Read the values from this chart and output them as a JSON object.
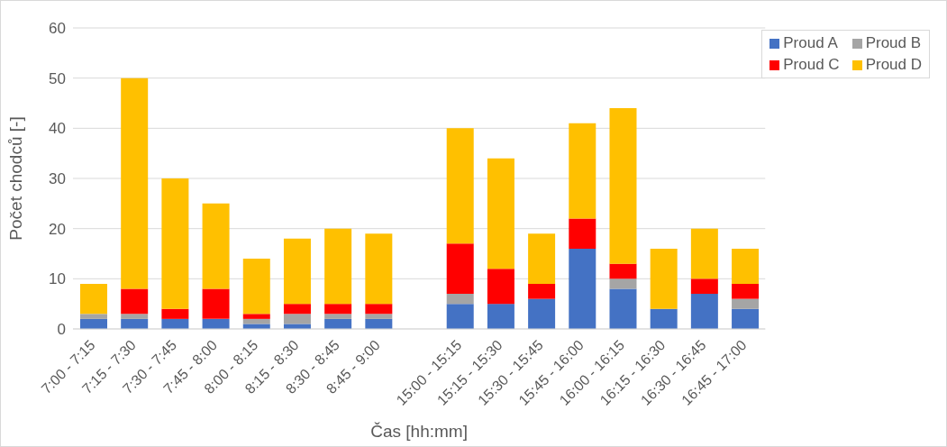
{
  "chart_data": {
    "type": "bar",
    "stacked": true,
    "xlabel": "Čas [hh:mm]",
    "ylabel": "Počet chodců [-]",
    "categories": [
      "7:00 - 7:15",
      "7:15 - 7:30",
      "7:30 - 7:45",
      "7:45 - 8:00",
      "8:00 - 8:15",
      "8:15 - 8:30",
      "8:30 - 8:45",
      "8:45 - 9:00",
      null,
      "15:00 - 15:15",
      "15:15 - 15:30",
      "15:30 - 15:45",
      "15:45 - 16:00",
      "16:00 - 16:15",
      "16:15 - 16:30",
      "16:30 - 16:45",
      "16:45 - 17:00"
    ],
    "series": [
      {
        "name": "Proud A",
        "color": "#4472c4",
        "values": [
          2,
          2,
          2,
          2,
          1,
          1,
          2,
          2,
          null,
          5,
          5,
          6,
          16,
          8,
          4,
          7,
          4
        ]
      },
      {
        "name": "Proud B",
        "color": "#a5a5a5",
        "values": [
          1,
          1,
          0,
          0,
          1,
          2,
          1,
          1,
          null,
          2,
          0,
          0,
          0,
          2,
          0,
          0,
          2
        ]
      },
      {
        "name": "Proud C",
        "color": "#ff0000",
        "values": [
          0,
          5,
          2,
          6,
          1,
          2,
          2,
          2,
          null,
          10,
          7,
          3,
          6,
          3,
          0,
          3,
          3
        ]
      },
      {
        "name": "Proud D",
        "color": "#ffc000",
        "values": [
          6,
          42,
          26,
          17,
          11,
          13,
          15,
          14,
          null,
          23,
          22,
          10,
          19,
          31,
          12,
          10,
          7
        ]
      }
    ],
    "ylim": [
      0,
      60
    ],
    "yticks": [
      0,
      10,
      20,
      30,
      40,
      50,
      60
    ],
    "grid": "y",
    "legend": "top right"
  }
}
